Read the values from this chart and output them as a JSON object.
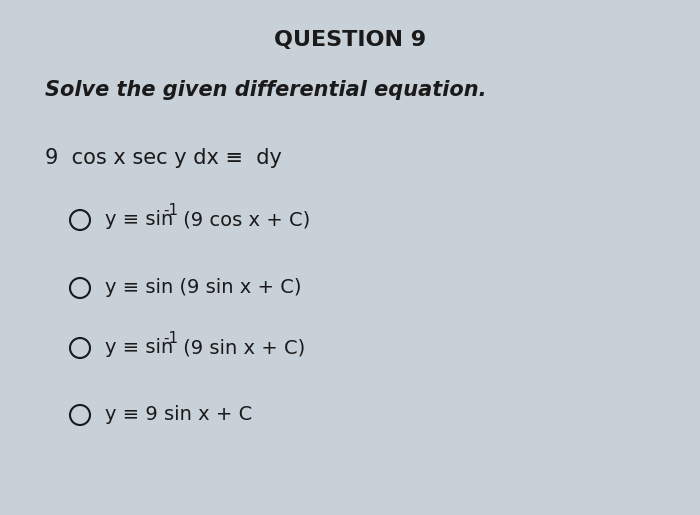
{
  "background_color": "#c8d0d8",
  "title": "QUESTION 9",
  "subtitle": "Solve the given differential equation.",
  "equation": "9  cos x sec y dx ≡  dy",
  "options": [
    {
      "has_superscript": true,
      "pre": "y ≡ sin",
      "sup": "-1",
      "post": " (9 cos x + C)"
    },
    {
      "has_superscript": false,
      "text": "y ≡ sin (9 sin x + C)"
    },
    {
      "has_superscript": true,
      "pre": "y ≡ sin",
      "sup": "-1",
      "post": " (9 sin x + C)"
    },
    {
      "has_superscript": false,
      "text": "y ≡ 9 sin x + C"
    }
  ],
  "text_color": "#1a1a1a",
  "bg_color": "#c8d0d8",
  "title_fontsize": 16,
  "subtitle_fontsize": 15,
  "eq_fontsize": 15,
  "option_fontsize": 14
}
